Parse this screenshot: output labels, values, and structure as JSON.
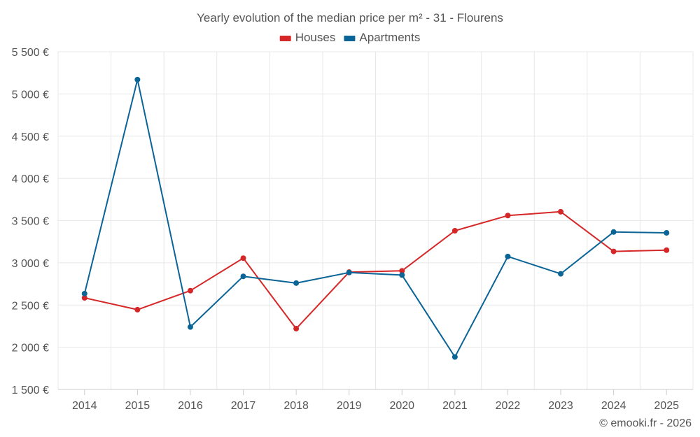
{
  "chart_data": {
    "type": "line",
    "title": "Yearly evolution of the median price per m² - 31 - Flourens",
    "categories": [
      "2014",
      "2015",
      "2016",
      "2017",
      "2018",
      "2019",
      "2020",
      "2021",
      "2022",
      "2023",
      "2024",
      "2025"
    ],
    "series": [
      {
        "name": "Houses",
        "color": "#d62728",
        "values": [
          2585,
          2445,
          2670,
          3055,
          2220,
          2890,
          2905,
          3380,
          3560,
          3605,
          3135,
          3150
        ]
      },
      {
        "name": "Apartments",
        "color": "#0a6496",
        "values": [
          2635,
          5170,
          2240,
          2840,
          2760,
          2885,
          2855,
          1885,
          3075,
          2870,
          3365,
          3355
        ]
      }
    ],
    "ylim": [
      1500,
      5500
    ],
    "yticks": [
      1500,
      2000,
      2500,
      3000,
      3500,
      4000,
      4500,
      5000,
      5500
    ],
    "ytick_labels": [
      "1 500 €",
      "2 000 €",
      "2 500 €",
      "3 000 €",
      "3 500 €",
      "4 000 €",
      "4 500 €",
      "5 000 €",
      "5 500 €"
    ],
    "legend_position": "top-center",
    "grid": true
  },
  "credit": "© emooki.fr - 2026"
}
